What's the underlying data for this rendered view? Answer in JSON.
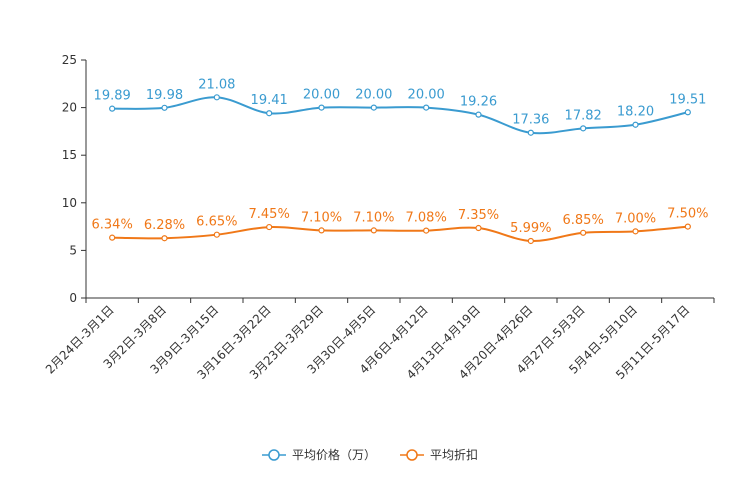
{
  "chart_data": {
    "type": "line",
    "title": "",
    "xlabel": "",
    "ylabel": "",
    "ylim": [
      0,
      25
    ],
    "y_ticks": [
      0,
      5,
      10,
      15,
      20,
      25
    ],
    "categories": [
      "2月24日-3月1日",
      "3月2日-3月8日",
      "3月9日-3月15日",
      "3月16日-3月22日",
      "3月23日-3月29日",
      "3月30日-4月5日",
      "4月6日-4月12日",
      "4月13日-4月19日",
      "4月20日-4月26日",
      "4月27日-5月3日",
      "5月4日-5月10日",
      "5月11日-5月17日"
    ],
    "series": [
      {
        "name": "平均价格（万）",
        "color": "#3a9bd0",
        "values": [
          19.89,
          19.98,
          21.08,
          19.41,
          20.0,
          20.0,
          20.0,
          19.26,
          17.36,
          17.82,
          18.2,
          19.51
        ],
        "labels": [
          "19.89",
          "19.98",
          "21.08",
          "19.41",
          "20.00",
          "20.00",
          "20.00",
          "19.26",
          "17.36",
          "17.82",
          "18.20",
          "19.51"
        ]
      },
      {
        "name": "平均折扣",
        "color": "#f07818",
        "values": [
          6.34,
          6.28,
          6.65,
          7.45,
          7.1,
          7.1,
          7.08,
          7.35,
          5.99,
          6.85,
          7.0,
          7.5
        ],
        "labels": [
          "6.34%",
          "6.28%",
          "6.65%",
          "7.45%",
          "7.10%",
          "7.10%",
          "7.08%",
          "7.35%",
          "5.99%",
          "6.85%",
          "7.00%",
          "7.50%"
        ]
      }
    ],
    "legend_position": "bottom-center",
    "grid": false
  }
}
